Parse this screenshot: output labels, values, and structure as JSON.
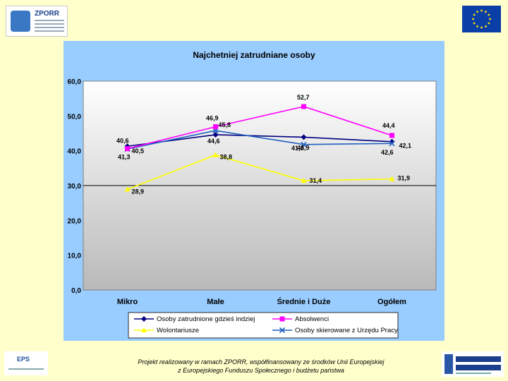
{
  "header": {
    "logo_left_name": "ZPORR"
  },
  "chart_data": {
    "type": "line",
    "title": "Najchetniej zatrudniane osoby",
    "categories": [
      "Mikro",
      "Małe",
      "Średnie i Duże",
      "Ogółem"
    ],
    "ylim": [
      0,
      60
    ],
    "yticks": [
      "0,0",
      "10,0",
      "20,0",
      "30,0",
      "40,0",
      "50,0",
      "60,0"
    ],
    "ytick_values": [
      0,
      10,
      20,
      30,
      40,
      50,
      60
    ],
    "grid": false,
    "legend_position": "bottom",
    "series": [
      {
        "name": "Osoby zatrudnione gdzieś indziej",
        "color": "#000080",
        "marker": "diamond",
        "values": [
          41.3,
          44.6,
          43.9,
          42.6
        ],
        "labels": [
          "41,3",
          "44,6",
          "43,9",
          "42,6"
        ]
      },
      {
        "name": "Absolwenci",
        "color": "#ff00ff",
        "marker": "square",
        "values": [
          40.6,
          46.9,
          52.7,
          44.4
        ],
        "labels": [
          "40,6",
          "46,9",
          "52,7",
          "44,4"
        ]
      },
      {
        "name": "Wolontariusze",
        "color": "#ffff00",
        "marker": "triangle",
        "values": [
          28.9,
          38.8,
          31.4,
          31.9
        ],
        "labels": [
          "28,9",
          "38,8",
          "31,4",
          "31,9"
        ]
      },
      {
        "name": "Osoby skierowane z Urzędu Pracy",
        "color": "#1f5fbf",
        "marker": "x",
        "values": [
          40.5,
          45.8,
          41.8,
          42.1
        ],
        "labels": [
          "40,5",
          "45,8",
          "41,8",
          "42,1"
        ]
      }
    ]
  },
  "footer": {
    "line1": "Projekt realizowany w ramach ZPORR, współfinansowany ze środków Unii Europejskiej",
    "line2": "z Europejskiego Funduszu Społecznego i budżetu państwa"
  },
  "logo_bottom_left": {
    "name": "EPS"
  }
}
